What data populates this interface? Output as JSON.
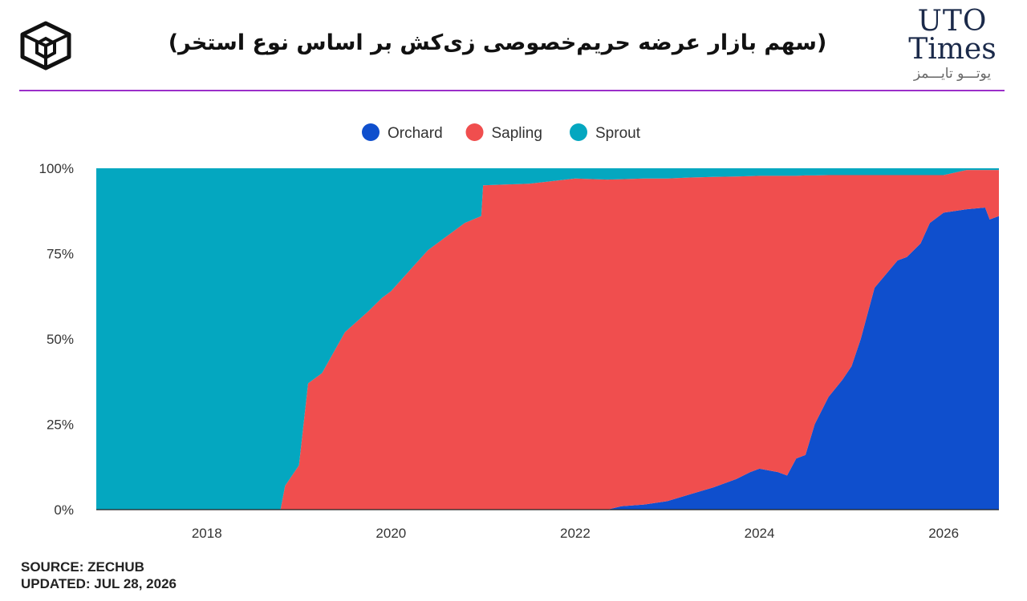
{
  "header": {
    "title": "(سهم بازار عرضه حریم‌خصوصی زی‌کش بر اساس نوع استخر)",
    "brand_line1": "UTO",
    "brand_line2": "Times",
    "brand_line3": "یوتـــو تایـــمز",
    "logo_icon": "cube-icon"
  },
  "footer": {
    "source": "SOURCE: ZECHUB",
    "updated": "UPDATED: JUL 28, 2026"
  },
  "colors": {
    "orchard": "#0f4fcd",
    "sapling": "#f04e4e",
    "sprout": "#04a7c0",
    "divider": "#9b2fc9"
  },
  "chart_data": {
    "type": "area",
    "stacked": true,
    "normalized": true,
    "legend_position": "top-center",
    "grid": false,
    "xlim": [
      2016.8,
      2026.6
    ],
    "ylim": [
      0,
      100
    ],
    "x_ticks": [
      "2018",
      "2020",
      "2022",
      "2024",
      "2026"
    ],
    "y_ticks": [
      "0%",
      "25%",
      "50%",
      "75%",
      "100%"
    ],
    "x": [
      2016.8,
      2018.8,
      2018.85,
      2019.0,
      2019.1,
      2019.25,
      2019.5,
      2019.75,
      2019.9,
      2020.0,
      2020.2,
      2020.4,
      2020.6,
      2020.8,
      2020.98,
      2021.0,
      2021.5,
      2022.0,
      2022.35,
      2022.5,
      2022.75,
      2023.0,
      2023.25,
      2023.5,
      2023.75,
      2023.9,
      2024.0,
      2024.2,
      2024.3,
      2024.4,
      2024.5,
      2024.6,
      2024.75,
      2024.9,
      2025.0,
      2025.1,
      2025.25,
      2025.5,
      2025.6,
      2025.75,
      2025.85,
      2026.0,
      2026.25,
      2026.45,
      2026.5,
      2026.6
    ],
    "series": [
      {
        "name": "Orchard",
        "values": [
          0,
          0,
          0,
          0,
          0,
          0,
          0,
          0,
          0,
          0,
          0,
          0,
          0,
          0,
          0,
          0,
          0,
          0,
          0,
          1,
          1.5,
          2.5,
          4.5,
          6.5,
          9,
          11,
          12,
          11,
          10,
          15,
          16,
          25,
          33,
          38,
          42,
          50,
          65,
          73,
          74,
          78,
          84,
          87,
          88,
          88.5,
          85,
          86
        ]
      },
      {
        "name": "Sapling",
        "values": [
          0,
          0,
          7,
          13,
          37,
          40,
          52,
          58,
          62,
          64,
          70,
          76,
          80,
          84,
          86,
          95,
          95.5,
          97,
          96.7,
          95.8,
          95.5,
          94.5,
          92.8,
          91,
          88.6,
          86.7,
          85.8,
          86.8,
          87.8,
          82.8,
          81.9,
          72.9,
          65,
          60,
          56,
          48,
          33,
          25,
          24,
          20,
          14,
          11,
          11.5,
          11,
          14.5,
          13.5
        ]
      },
      {
        "name": "Sprout",
        "values": [
          100,
          100,
          93,
          87,
          63,
          60,
          48,
          42,
          38,
          36,
          30,
          24,
          20,
          16,
          14,
          5,
          4.5,
          3,
          3.3,
          3.2,
          3,
          3,
          2.7,
          2.5,
          2.4,
          2.3,
          2.2,
          2.2,
          2.2,
          2.2,
          2.1,
          2.1,
          2,
          2,
          2,
          2,
          2,
          2,
          2,
          2,
          2,
          2,
          0.5,
          0.5,
          0.5,
          0.5
        ]
      }
    ]
  }
}
